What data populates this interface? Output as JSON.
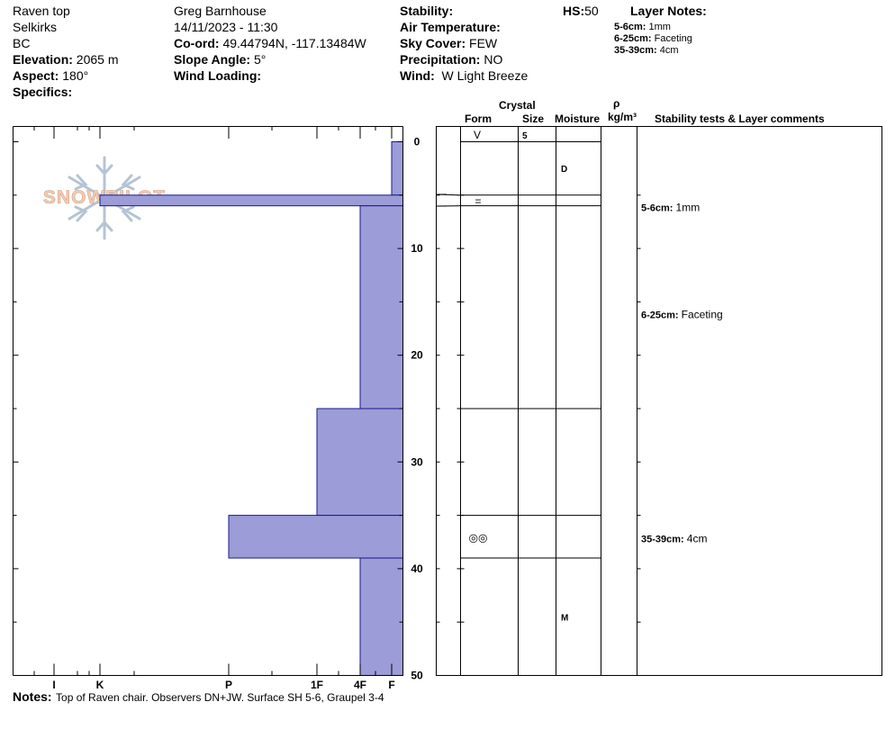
{
  "header": {
    "col1": {
      "location": "Raven top",
      "range": "Selkirks",
      "province": "BC",
      "elevation_label": "Elevation:",
      "elevation_value": "2065 m",
      "aspect_label": "Aspect:",
      "aspect_value": "180°",
      "specifics_label": "Specifics:"
    },
    "col2": {
      "observer": "Greg Barnhouse",
      "datetime": "14/11/2023 - 11:30",
      "coord_label": "Co-ord:",
      "coord_value": "49.44794N, -117.13484W",
      "slope_label": "Slope Angle:",
      "slope_value": "5°",
      "wind_loading_label": "Wind Loading:"
    },
    "col3": {
      "stability_label": "Stability:",
      "air_temp_label": "Air Temperature:",
      "sky_label": "Sky Cover:",
      "sky_value": "FEW",
      "precip_label": "Precipitation:",
      "precip_value": "NO",
      "wind_label": "Wind:",
      "wind_value": "W Light Breeze"
    },
    "hs_label": "HS:",
    "hs_value": "50",
    "layer_notes_title": "Layer Notes:",
    "layer_notes": [
      {
        "label": "5-6cm:",
        "text": "1mm"
      },
      {
        "label": "6-25cm:",
        "text": "Faceting"
      },
      {
        "label": "35-39cm:",
        "text": "4cm"
      }
    ]
  },
  "logo_text": "SNOWPILOT",
  "column_headers": {
    "crystal": "Crystal",
    "form": "Form",
    "size": "Size",
    "moisture": "Moisture",
    "rho": "ρ",
    "density_unit": "kg/m³",
    "comments": "Stability tests & Layer comments"
  },
  "notes": {
    "label": "Notes:",
    "text": "Top of Raven chair. Observers DN+JW. Surface SH 5-6, Graupel 3-4"
  },
  "colors": {
    "hardness_fill": "#9c9cd8",
    "hardness_stroke": "#1a1a8c"
  },
  "chart_data": {
    "type": "bar",
    "orientation": "horizontal",
    "y_axis": {
      "label": "",
      "range": [
        0,
        50
      ],
      "inverted": true,
      "ticks": [
        0,
        10,
        20,
        30,
        40,
        50
      ]
    },
    "x_axis": {
      "label": "",
      "categories": [
        "I",
        "K",
        "P",
        "1F",
        "4F",
        "F"
      ]
    },
    "hardness_layers": [
      {
        "top": 0,
        "bottom": 5,
        "hardness": "F-"
      },
      {
        "top": 5,
        "bottom": 6,
        "hardness": "K"
      },
      {
        "top": 6,
        "bottom": 25,
        "hardness": "4F"
      },
      {
        "top": 25,
        "bottom": 35,
        "hardness": "1F"
      },
      {
        "top": 35,
        "bottom": 39,
        "hardness": "P"
      },
      {
        "top": 39,
        "bottom": 50,
        "hardness": "4F+"
      }
    ],
    "layer_boundaries": [
      0,
      5,
      6,
      25,
      35,
      39
    ],
    "surface_form_symbol": "V",
    "surface_size": "5",
    "forms": [
      {
        "depth": 5.5,
        "symbol": "="
      },
      {
        "depth": 37,
        "symbol": "◎◎"
      }
    ],
    "moisture": [
      {
        "depth": 2.5,
        "value": "D"
      },
      {
        "depth": 44.5,
        "value": "M"
      }
    ],
    "comments": [
      {
        "depth": 6,
        "label": "5-6cm:",
        "text": "1mm"
      },
      {
        "depth": 16,
        "label": "6-25cm:",
        "text": "Faceting"
      },
      {
        "depth": 37,
        "label": "35-39cm:",
        "text": "4cm"
      }
    ]
  }
}
